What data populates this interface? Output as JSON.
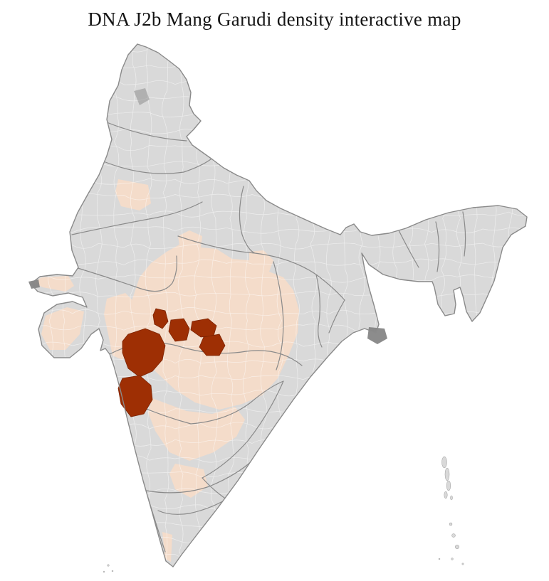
{
  "page": {
    "title": "DNA J2b Mang Garudi density interactive map"
  },
  "map": {
    "colors": {
      "background": "#ffffff",
      "district_base": "#d9d9d9",
      "district_border": "#ffffff",
      "state_border": "#8a8a8a",
      "low_density": "#f4dcca",
      "high_density": "#9e2f04",
      "high_density_edge": "#7c2402",
      "dark_patch": "#7f7f7f"
    }
  }
}
